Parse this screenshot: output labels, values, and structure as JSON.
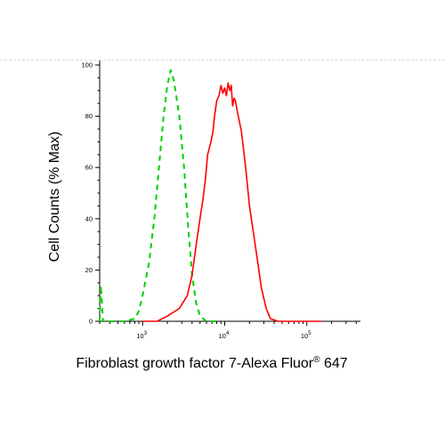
{
  "chart_data": {
    "type": "line",
    "xlabel": "Fibroblast growth factor 7-Alexa Fluor® 647",
    "xlabel_main": "Fibroblast growth factor 7-Alexa Fluor",
    "xlabel_mark": "®",
    "xlabel_tail": " 647",
    "ylabel": "Cell Counts (% Max)",
    "x_scale": "log",
    "xlim": [
      300,
      450000
    ],
    "ylim": [
      0,
      100
    ],
    "y_ticks": [
      {
        "value": 0,
        "label": "0"
      },
      {
        "value": 20,
        "label": "20"
      },
      {
        "value": 40,
        "label": "40"
      },
      {
        "value": 60,
        "label": "60"
      },
      {
        "value": 80,
        "label": "80"
      },
      {
        "value": 100,
        "label": "100"
      }
    ],
    "x_ticks": [
      {
        "value": 1000,
        "base": "10",
        "exp": "3"
      },
      {
        "value": 10000,
        "base": "10",
        "exp": "4"
      },
      {
        "value": 100000,
        "base": "10",
        "exp": "5"
      }
    ],
    "grid": false,
    "legend": "none",
    "series": [
      {
        "color": "#00d000",
        "style": "dashed",
        "points": [
          [
            300,
            0
          ],
          [
            310,
            14
          ],
          [
            330,
            0
          ],
          [
            400,
            0
          ],
          [
            600,
            0
          ],
          [
            800,
            1
          ],
          [
            900,
            4
          ],
          [
            1000,
            10
          ],
          [
            1200,
            23
          ],
          [
            1400,
            41
          ],
          [
            1600,
            62
          ],
          [
            1800,
            80
          ],
          [
            2000,
            92
          ],
          [
            2200,
            98
          ],
          [
            2400,
            94
          ],
          [
            2800,
            80
          ],
          [
            3200,
            60
          ],
          [
            3600,
            36
          ],
          [
            4000,
            18
          ],
          [
            4500,
            7
          ],
          [
            5000,
            2
          ],
          [
            6000,
            0
          ],
          [
            8000,
            0
          ]
        ]
      },
      {
        "color": "#ff0000",
        "style": "solid",
        "points": [
          [
            1000,
            0
          ],
          [
            1500,
            0
          ],
          [
            2000,
            2
          ],
          [
            2800,
            5
          ],
          [
            3500,
            10
          ],
          [
            4000,
            18
          ],
          [
            4500,
            30
          ],
          [
            5000,
            40
          ],
          [
            5400,
            47
          ],
          [
            5800,
            55
          ],
          [
            6200,
            65
          ],
          [
            6800,
            70
          ],
          [
            7200,
            74
          ],
          [
            7500,
            80
          ],
          [
            8000,
            86
          ],
          [
            8500,
            88
          ],
          [
            9000,
            92
          ],
          [
            9500,
            89
          ],
          [
            10000,
            91
          ],
          [
            10500,
            88
          ],
          [
            11000,
            93
          ],
          [
            11500,
            90
          ],
          [
            12000,
            92
          ],
          [
            12500,
            84
          ],
          [
            13000,
            87
          ],
          [
            13500,
            86
          ],
          [
            14000,
            83
          ],
          [
            16000,
            74
          ],
          [
            18000,
            60
          ],
          [
            20000,
            45
          ],
          [
            22000,
            36
          ],
          [
            25000,
            24
          ],
          [
            28000,
            13
          ],
          [
            32000,
            5
          ],
          [
            36000,
            1
          ],
          [
            45000,
            0
          ],
          [
            60000,
            0
          ],
          [
            100000,
            0
          ],
          [
            150000,
            0
          ]
        ]
      }
    ]
  }
}
